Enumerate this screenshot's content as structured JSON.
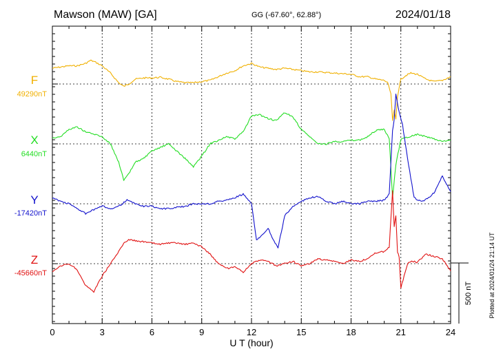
{
  "header": {
    "station": "Mawson (MAW)  [GA]",
    "coords": "GG (-67.60°,  62.88°)",
    "date": "2024/01/18"
  },
  "side_note": "Plotted at 2024/01/24 21:14 UT",
  "scale_label": "500 nT",
  "colors": {
    "F": "#f0b000",
    "X": "#22dd22",
    "Y": "#1010cc",
    "Z": "#e01010",
    "axis": "#000000"
  },
  "chart_data": {
    "type": "line",
    "xlabel": "U T (hour)",
    "xlim": [
      0,
      24
    ],
    "xticks": [
      0,
      3,
      6,
      9,
      12,
      15,
      18,
      21,
      24
    ],
    "xtick_labels": [
      "0",
      "3",
      "6",
      "9",
      "12",
      "15",
      "18",
      "21",
      "24"
    ],
    "grid": true,
    "scale_bar_nT": 500,
    "series": [
      {
        "name": "F",
        "baseline_label": "49290nT",
        "baseline_nT": 49290,
        "x": [
          0,
          0.5,
          1,
          1.5,
          2,
          2.3,
          2.6,
          3,
          3.5,
          4,
          4.3,
          4.6,
          5,
          5.5,
          6,
          6.5,
          7,
          7.5,
          8,
          8.5,
          9,
          9.5,
          10,
          10.5,
          11,
          11.5,
          12,
          12.5,
          13,
          13.5,
          14,
          14.5,
          15,
          15.5,
          16,
          16.5,
          17,
          17.5,
          18,
          18.5,
          19,
          19.5,
          20,
          20.2,
          20.4,
          20.5,
          20.6,
          20.7,
          20.8,
          21,
          21.3,
          21.6,
          22,
          22.5,
          23,
          23.5,
          24
        ],
        "y": [
          130,
          140,
          150,
          150,
          170,
          195,
          180,
          150,
          90,
          10,
          -20,
          0,
          40,
          50,
          50,
          55,
          40,
          20,
          10,
          10,
          20,
          30,
          60,
          90,
          110,
          150,
          170,
          140,
          130,
          120,
          130,
          120,
          110,
          100,
          100,
          95,
          90,
          85,
          80,
          60,
          60,
          40,
          30,
          10,
          -80,
          -300,
          -220,
          -290,
          -100,
          40,
          70,
          90,
          80,
          40,
          20,
          30,
          60
        ]
      },
      {
        "name": "X",
        "baseline_label": "6440nT",
        "baseline_nT": 6440,
        "x": [
          0,
          0.5,
          1,
          1.5,
          2,
          2.5,
          3,
          3.5,
          4,
          4.3,
          4.6,
          5,
          5.5,
          6,
          6.5,
          7,
          7.5,
          8,
          8.5,
          9,
          9.5,
          10,
          10.5,
          11,
          11.5,
          12,
          12.5,
          13,
          13.5,
          14,
          14.5,
          15,
          15.5,
          16,
          16.5,
          17,
          17.5,
          18,
          18.5,
          19,
          19.5,
          20,
          20.3,
          20.5,
          20.7,
          21,
          21.5,
          22,
          22.5,
          23,
          23.5,
          24
        ],
        "y": [
          50,
          60,
          120,
          140,
          100,
          80,
          60,
          0,
          -150,
          -300,
          -250,
          -150,
          -120,
          -60,
          -30,
          0,
          -60,
          -120,
          -190,
          -100,
          0,
          30,
          60,
          40,
          100,
          230,
          240,
          210,
          190,
          260,
          220,
          120,
          60,
          0,
          0,
          20,
          20,
          30,
          30,
          60,
          110,
          120,
          40,
          -440,
          -170,
          40,
          60,
          80,
          60,
          40,
          20,
          30
        ]
      },
      {
        "name": "Y",
        "baseline_label": "-17420nT",
        "baseline_nT": -17420,
        "x": [
          0,
          0.5,
          1,
          1.5,
          2,
          2.5,
          3,
          3.5,
          4,
          4.5,
          5,
          5.5,
          6,
          6.5,
          7,
          7.5,
          8,
          8.5,
          9,
          9.5,
          10,
          10.5,
          11,
          11.5,
          12,
          12.3,
          12.6,
          13,
          13.3,
          13.6,
          14,
          14.5,
          15,
          15.5,
          16,
          16.5,
          17,
          17.5,
          18,
          18.5,
          19,
          19.5,
          20,
          20.3,
          20.5,
          20.6,
          20.7,
          20.9,
          21.1,
          21.4,
          21.8,
          22.2,
          22.6,
          23,
          23.5,
          24
        ],
        "y": [
          50,
          20,
          0,
          -40,
          -80,
          -50,
          -20,
          -40,
          -20,
          30,
          0,
          -20,
          -20,
          -40,
          -40,
          -30,
          -20,
          0,
          0,
          0,
          20,
          30,
          50,
          80,
          0,
          -300,
          -260,
          -200,
          -300,
          -360,
          -100,
          -20,
          20,
          50,
          60,
          20,
          0,
          20,
          0,
          0,
          20,
          20,
          30,
          80,
          600,
          700,
          900,
          760,
          650,
          380,
          50,
          20,
          40,
          90,
          230,
          100
        ]
      },
      {
        "name": "Z",
        "baseline_label": "-45660nT",
        "baseline_nT": -45660,
        "x": [
          0,
          0.5,
          1,
          1.5,
          2,
          2.5,
          3,
          3.5,
          4,
          4.3,
          4.6,
          5,
          5.5,
          6,
          6.5,
          7,
          7.5,
          8,
          8.5,
          9,
          9.5,
          10,
          10.5,
          11,
          11.5,
          12,
          12.5,
          13,
          13.5,
          14,
          14.5,
          15,
          15.5,
          16,
          16.5,
          17,
          17.5,
          18,
          18.5,
          19,
          19.5,
          20,
          20.3,
          20.5,
          20.6,
          20.7,
          20.8,
          20.9,
          21,
          21.2,
          21.4,
          21.7,
          22,
          22.5,
          23,
          23.5,
          24
        ],
        "y": [
          -70,
          -20,
          0,
          -50,
          -180,
          -230,
          -100,
          0,
          100,
          170,
          200,
          190,
          180,
          170,
          160,
          170,
          170,
          160,
          170,
          140,
          80,
          0,
          -40,
          -30,
          -70,
          0,
          30,
          20,
          -20,
          0,
          20,
          -20,
          0,
          40,
          30,
          20,
          0,
          30,
          20,
          40,
          90,
          100,
          140,
          600,
          300,
          400,
          100,
          50,
          -200,
          -100,
          0,
          20,
          10,
          80,
          60,
          40,
          -60
        ]
      }
    ]
  }
}
